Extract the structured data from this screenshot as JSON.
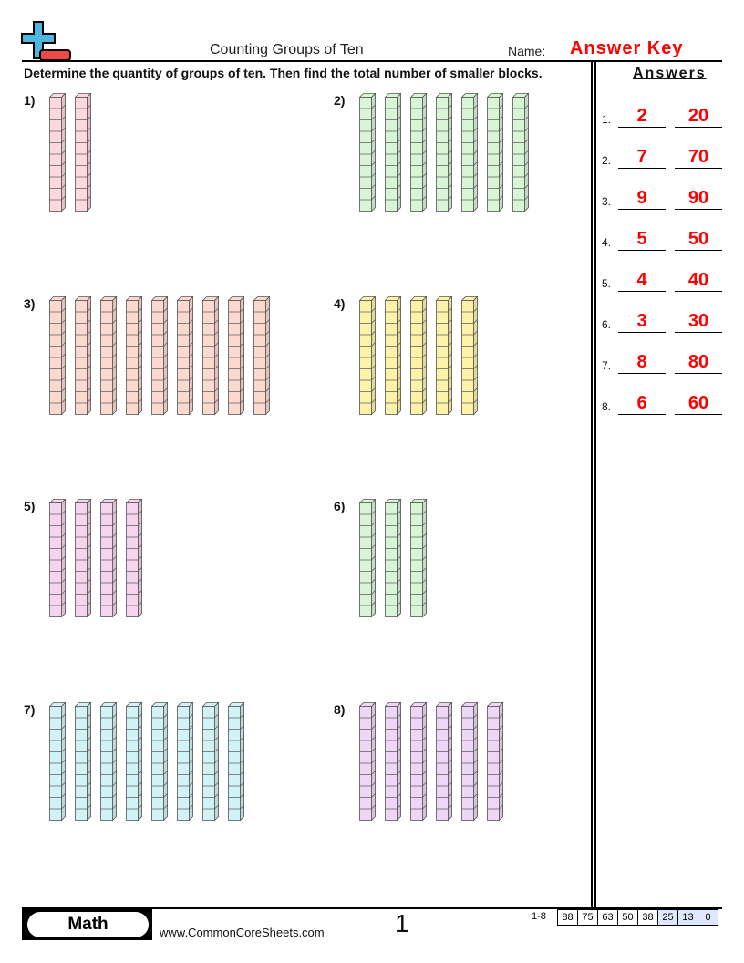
{
  "header": {
    "title": "Counting Groups of Ten",
    "name_label": "Name:",
    "name_value": "Answer Key",
    "logo": "plus-minus-logo"
  },
  "instructions": "Determine the quantity of groups of ten. Then find the total number of smaller blocks.",
  "problems": [
    {
      "label": "1)",
      "rods": 2,
      "color": "#fdd8dc"
    },
    {
      "label": "2)",
      "rods": 7,
      "color": "#d8f5d6"
    },
    {
      "label": "3)",
      "rods": 9,
      "color": "#fcd9cf"
    },
    {
      "label": "4)",
      "rods": 5,
      "color": "#fcf3a8"
    },
    {
      "label": "5)",
      "rods": 4,
      "color": "#f6d4ee"
    },
    {
      "label": "6)",
      "rods": 3,
      "color": "#d8f5d6"
    },
    {
      "label": "7)",
      "rods": 8,
      "color": "#d2f3f5"
    },
    {
      "label": "8)",
      "rods": 6,
      "color": "#efd6f6"
    }
  ],
  "answers": {
    "heading": "Answers",
    "items": [
      {
        "n": "1.",
        "groups": "2",
        "total": "20"
      },
      {
        "n": "2.",
        "groups": "7",
        "total": "70"
      },
      {
        "n": "3.",
        "groups": "9",
        "total": "90"
      },
      {
        "n": "4.",
        "groups": "5",
        "total": "50"
      },
      {
        "n": "5.",
        "groups": "4",
        "total": "40"
      },
      {
        "n": "6.",
        "groups": "3",
        "total": "30"
      },
      {
        "n": "7.",
        "groups": "8",
        "total": "80"
      },
      {
        "n": "8.",
        "groups": "6",
        "total": "60"
      }
    ]
  },
  "footer": {
    "subject": "Math",
    "site": "www.CommonCoreSheets.com",
    "page": "1",
    "range": "1-8",
    "scores": [
      "88",
      "75",
      "63",
      "50",
      "38",
      "25",
      "13",
      "0"
    ],
    "score_highlight": "#dde8ff"
  }
}
